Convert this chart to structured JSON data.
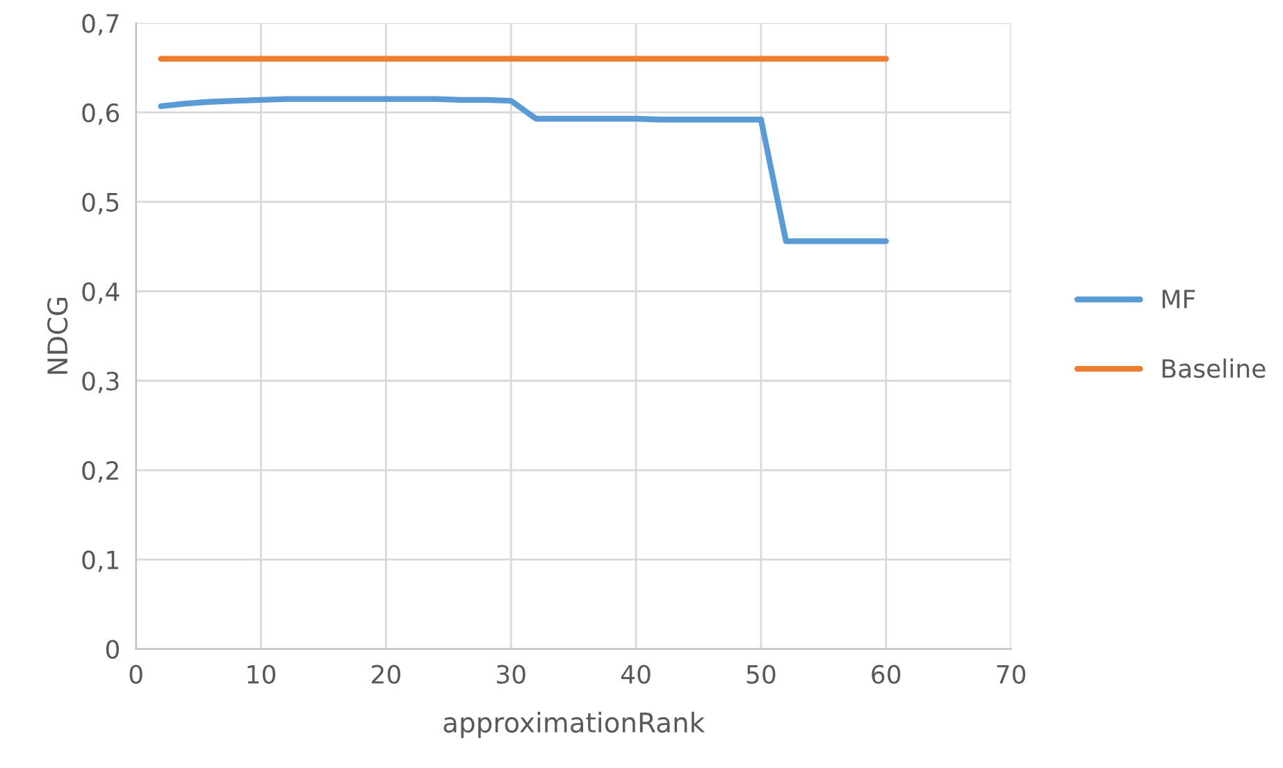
{
  "chart_data": {
    "type": "line",
    "xlabel": "approximationRank",
    "ylabel": "NDCG",
    "x": [
      2,
      4,
      6,
      8,
      10,
      12,
      14,
      16,
      18,
      20,
      22,
      24,
      26,
      28,
      30,
      32,
      34,
      36,
      38,
      40,
      42,
      44,
      46,
      48,
      50,
      52,
      54,
      56,
      58,
      60
    ],
    "series": [
      {
        "name": "MF",
        "color": "#5b9bd5",
        "values": [
          0.607,
          0.61,
          0.612,
          0.613,
          0.614,
          0.615,
          0.615,
          0.615,
          0.615,
          0.615,
          0.615,
          0.615,
          0.614,
          0.614,
          0.613,
          0.593,
          0.593,
          0.593,
          0.593,
          0.593,
          0.592,
          0.592,
          0.592,
          0.592,
          0.592,
          0.456,
          0.456,
          0.456,
          0.456,
          0.456
        ]
      },
      {
        "name": "Baseline",
        "color": "#ed7d31",
        "values": [
          0.66,
          0.66,
          0.66,
          0.66,
          0.66,
          0.66,
          0.66,
          0.66,
          0.66,
          0.66,
          0.66,
          0.66,
          0.66,
          0.66,
          0.66,
          0.66,
          0.66,
          0.66,
          0.66,
          0.66,
          0.66,
          0.66,
          0.66,
          0.66,
          0.66,
          0.66,
          0.66,
          0.66,
          0.66,
          0.66
        ]
      }
    ],
    "xlim": [
      0,
      70
    ],
    "xticks": [
      0,
      10,
      20,
      30,
      40,
      50,
      60,
      70
    ],
    "ylim": [
      0,
      0.7
    ],
    "yticks": [
      0,
      {
        "value": 0.1,
        "label": "0,1"
      },
      {
        "value": 0.2,
        "label": "0,2"
      },
      {
        "value": 0.3,
        "label": "0,3"
      },
      {
        "value": 0.4,
        "label": "0,4"
      },
      {
        "value": 0.5,
        "label": "0,5"
      },
      {
        "value": 0.6,
        "label": "0,6"
      },
      {
        "value": 0.7,
        "label": "0,7"
      }
    ],
    "grid": true,
    "legend": "right",
    "marker": "none",
    "line_style": "solid"
  }
}
